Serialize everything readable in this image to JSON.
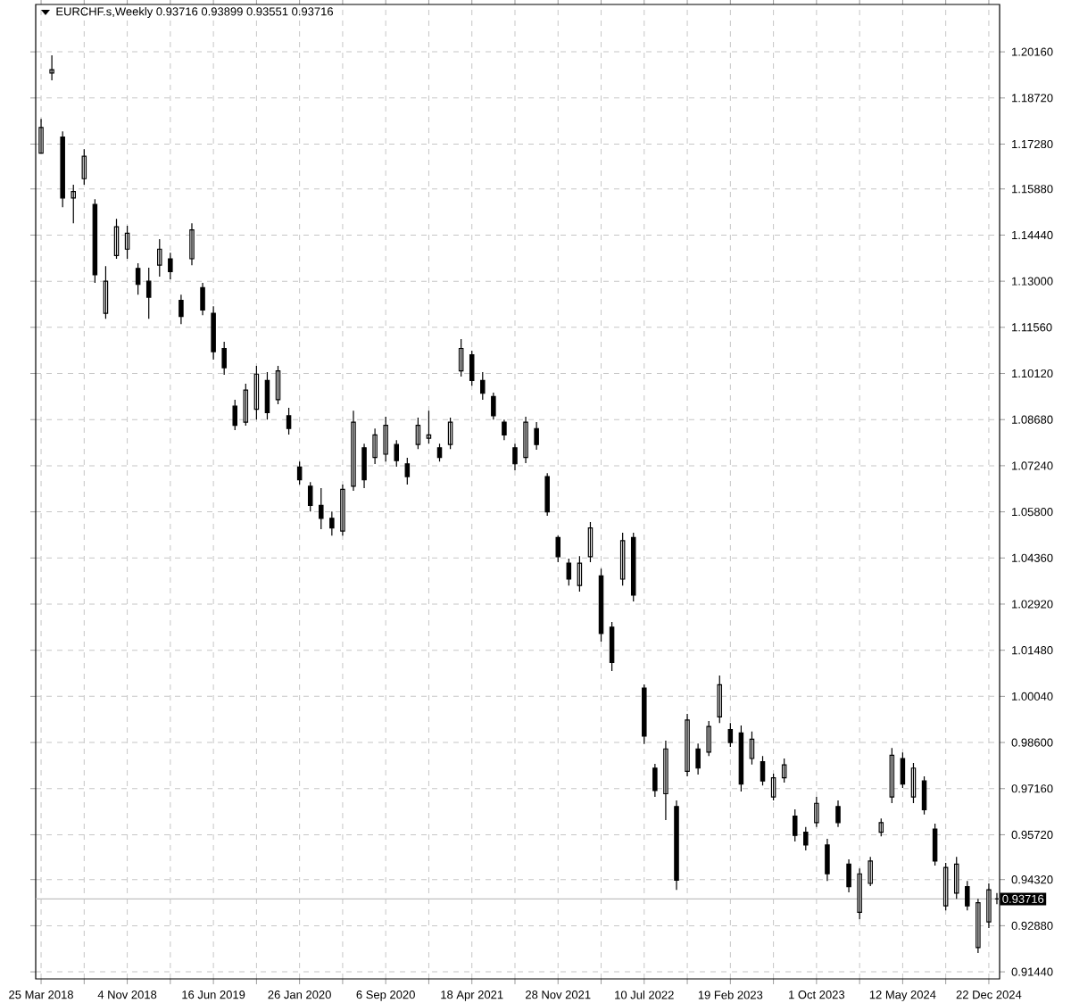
{
  "chart_data": {
    "type": "candlestick",
    "title": "EURCHF.s,Weekly  0.93716 0.93899 0.93551 0.93716",
    "color": "#000000",
    "grid": true,
    "x": [
      "2018-03-25",
      "2018-04-22",
      "2018-05-20",
      "2018-06-17",
      "2018-07-15",
      "2018-08-12",
      "2018-09-09",
      "2018-10-07",
      "2018-11-04",
      "2018-12-02",
      "2018-12-30",
      "2019-01-27",
      "2019-02-24",
      "2019-03-24",
      "2019-04-21",
      "2019-05-19",
      "2019-06-16",
      "2019-07-14",
      "2019-08-11",
      "2019-09-08",
      "2019-10-06",
      "2019-11-03",
      "2019-12-01",
      "2019-12-29",
      "2020-01-26",
      "2020-02-23",
      "2020-03-22",
      "2020-04-19",
      "2020-05-17",
      "2020-06-14",
      "2020-07-12",
      "2020-08-09",
      "2020-09-06",
      "2020-10-04",
      "2020-11-01",
      "2020-11-29",
      "2020-12-27",
      "2021-01-24",
      "2021-02-21",
      "2021-03-21",
      "2021-04-18",
      "2021-05-16",
      "2021-06-13",
      "2021-07-11",
      "2021-08-08",
      "2021-09-05",
      "2021-10-03",
      "2021-10-31",
      "2021-11-28",
      "2021-12-26",
      "2022-01-23",
      "2022-02-20",
      "2022-03-20",
      "2022-04-17",
      "2022-05-15",
      "2022-06-12",
      "2022-07-10",
      "2022-08-07",
      "2022-09-04",
      "2022-10-02",
      "2022-10-30",
      "2022-11-27",
      "2022-12-25",
      "2023-01-22",
      "2023-02-19",
      "2023-03-19",
      "2023-04-16",
      "2023-05-14",
      "2023-06-11",
      "2023-07-09",
      "2023-08-06",
      "2023-09-03",
      "2023-10-01",
      "2023-10-29",
      "2023-11-26",
      "2023-12-24",
      "2024-01-21",
      "2024-02-18",
      "2024-03-17",
      "2024-04-14",
      "2024-05-12",
      "2024-06-09",
      "2024-07-07",
      "2024-08-04",
      "2024-09-01",
      "2024-09-29",
      "2024-10-27",
      "2024-11-24",
      "2024-12-22",
      "2025-01-12"
    ],
    "ohlc": [
      [
        1.17,
        1.1807,
        1.1698,
        1.178
      ],
      [
        1.195,
        1.2005,
        1.1927,
        1.196
      ],
      [
        1.175,
        1.1768,
        1.1531,
        1.156
      ],
      [
        1.156,
        1.1601,
        1.1481,
        1.158
      ],
      [
        1.162,
        1.1712,
        1.1601,
        1.169
      ],
      [
        1.154,
        1.1556,
        1.1295,
        1.132
      ],
      [
        1.12,
        1.1347,
        1.1183,
        1.13
      ],
      [
        1.138,
        1.1495,
        1.137,
        1.147
      ],
      [
        1.14,
        1.1473,
        1.137,
        1.145
      ],
      [
        1.134,
        1.1356,
        1.1258,
        1.129
      ],
      [
        1.13,
        1.1342,
        1.1183,
        1.125
      ],
      [
        1.135,
        1.1431,
        1.1314,
        1.14
      ],
      [
        1.137,
        1.1389,
        1.1306,
        1.133
      ],
      [
        1.124,
        1.1258,
        1.1166,
        1.119
      ],
      [
        1.137,
        1.1481,
        1.135,
        1.146
      ],
      [
        1.128,
        1.1295,
        1.1194,
        1.121
      ],
      [
        1.12,
        1.1222,
        1.1055,
        1.108
      ],
      [
        1.109,
        1.1111,
        1.1008,
        1.103
      ],
      [
        1.091,
        1.093,
        1.0835,
        1.085
      ],
      [
        1.086,
        1.098,
        1.0849,
        1.096
      ],
      [
        1.09,
        1.1036,
        1.0868,
        1.101
      ],
      [
        1.099,
        1.1016,
        1.0868,
        1.089
      ],
      [
        1.093,
        1.1036,
        1.0916,
        1.102
      ],
      [
        1.088,
        1.0905,
        1.0821,
        1.084
      ],
      [
        1.072,
        1.0737,
        1.0665,
        1.068
      ],
      [
        1.066,
        1.0673,
        1.0581,
        1.06
      ],
      [
        1.06,
        1.0654,
        1.0526,
        1.056
      ],
      [
        1.056,
        1.0581,
        1.0506,
        1.053
      ],
      [
        1.052,
        1.0665,
        1.0506,
        1.065
      ],
      [
        1.066,
        1.0896,
        1.0646,
        1.086
      ],
      [
        1.078,
        1.0793,
        1.0654,
        1.068
      ],
      [
        1.075,
        1.084,
        1.0729,
        1.082
      ],
      [
        1.076,
        1.0877,
        1.0737,
        1.085
      ],
      [
        1.079,
        1.0804,
        1.0721,
        1.074
      ],
      [
        1.073,
        1.0749,
        1.0665,
        1.069
      ],
      [
        1.079,
        1.0874,
        1.0776,
        1.085
      ],
      [
        1.081,
        1.0896,
        1.0793,
        1.082
      ],
      [
        1.078,
        1.0793,
        1.0737,
        1.075
      ],
      [
        1.079,
        1.0874,
        1.0776,
        1.086
      ],
      [
        1.102,
        1.1119,
        1.1002,
        1.109
      ],
      [
        1.107,
        1.1083,
        1.0974,
        1.099
      ],
      [
        1.099,
        1.1016,
        1.093,
        1.095
      ],
      [
        1.094,
        1.0952,
        1.0868,
        1.088
      ],
      [
        1.086,
        1.0868,
        1.0804,
        1.082
      ],
      [
        1.078,
        1.0793,
        1.071,
        1.073
      ],
      [
        1.075,
        1.0877,
        1.0732,
        1.086
      ],
      [
        1.084,
        1.086,
        1.0774,
        1.079
      ],
      [
        1.069,
        1.0701,
        1.0568,
        1.058
      ],
      [
        1.05,
        1.0506,
        1.0423,
        1.044
      ],
      [
        1.042,
        1.0434,
        1.035,
        1.037
      ],
      [
        1.035,
        1.0442,
        1.0331,
        1.042
      ],
      [
        1.044,
        1.0548,
        1.0423,
        1.053
      ],
      [
        1.038,
        1.0403,
        1.0175,
        1.02
      ],
      [
        1.022,
        1.0236,
        1.0083,
        1.011
      ],
      [
        1.037,
        1.0515,
        1.035,
        1.049
      ],
      [
        1.05,
        1.0515,
        1.03,
        1.032
      ],
      [
        1.003,
        1.0041,
        0.9855,
        0.988
      ],
      [
        0.978,
        0.9793,
        0.969,
        0.971
      ],
      [
        0.97,
        0.9866,
        0.9618,
        0.984
      ],
      [
        0.966,
        0.9679,
        0.94,
        0.943
      ],
      [
        0.977,
        0.9949,
        0.9754,
        0.993
      ],
      [
        0.984,
        0.9857,
        0.976,
        0.978
      ],
      [
        0.983,
        0.9927,
        0.9818,
        0.991
      ],
      [
        0.994,
        1.0069,
        0.9921,
        1.004
      ],
      [
        0.99,
        0.9921,
        0.9846,
        0.986
      ],
      [
        0.989,
        0.9913,
        0.9707,
        0.973
      ],
      [
        0.981,
        0.9894,
        0.9791,
        0.987
      ],
      [
        0.98,
        0.9818,
        0.9726,
        0.974
      ],
      [
        0.969,
        0.9763,
        0.9679,
        0.975
      ],
      [
        0.975,
        0.981,
        0.9735,
        0.979
      ],
      [
        0.963,
        0.9651,
        0.9551,
        0.957
      ],
      [
        0.958,
        0.9596,
        0.9523,
        0.954
      ],
      [
        0.961,
        0.969,
        0.9596,
        0.967
      ],
      [
        0.954,
        0.9559,
        0.9428,
        0.945
      ],
      [
        0.966,
        0.9679,
        0.9596,
        0.961
      ],
      [
        0.948,
        0.9495,
        0.9392,
        0.941
      ],
      [
        0.933,
        0.9467,
        0.9308,
        0.945
      ],
      [
        0.942,
        0.9503,
        0.9412,
        0.949
      ],
      [
        0.958,
        0.9623,
        0.9567,
        0.961
      ],
      [
        0.969,
        0.9843,
        0.9671,
        0.982
      ],
      [
        0.981,
        0.9829,
        0.9718,
        0.973
      ],
      [
        0.969,
        0.9796,
        0.9671,
        0.978
      ],
      [
        0.974,
        0.9754,
        0.9635,
        0.965
      ],
      [
        0.959,
        0.9607,
        0.9476,
        0.949
      ],
      [
        0.935,
        0.9484,
        0.9336,
        0.947
      ],
      [
        0.939,
        0.9503,
        0.9372,
        0.948
      ],
      [
        0.941,
        0.9428,
        0.9336,
        0.935
      ],
      [
        0.922,
        0.9372,
        0.9203,
        0.936
      ],
      [
        0.93,
        0.942,
        0.9281,
        0.94
      ],
      [
        0.93716,
        0.93899,
        0.93551,
        0.93716
      ]
    ],
    "xlim": [
      "2018-03-11",
      "2025-01-19"
    ],
    "ylim": [
      0.9122,
      1.2164
    ],
    "xticks": [
      {
        "value": "2018-03-25",
        "label": "25 Mar 2018"
      },
      {
        "value": "2018-07-15",
        "label": null
      },
      {
        "value": "2018-11-04",
        "label": "4 Nov 2018"
      },
      {
        "value": "2019-02-24",
        "label": null
      },
      {
        "value": "2019-06-16",
        "label": "16 Jun 2019"
      },
      {
        "value": "2019-10-06",
        "label": null
      },
      {
        "value": "2020-01-26",
        "label": "26 Jan 2020"
      },
      {
        "value": "2020-05-17",
        "label": null
      },
      {
        "value": "2020-09-06",
        "label": "6 Sep 2020"
      },
      {
        "value": "2020-12-27",
        "label": null
      },
      {
        "value": "2021-04-18",
        "label": "18 Apr 2021"
      },
      {
        "value": "2021-08-08",
        "label": null
      },
      {
        "value": "2021-11-28",
        "label": "28 Nov 2021"
      },
      {
        "value": "2022-03-20",
        "label": null
      },
      {
        "value": "2022-07-10",
        "label": "10 Jul 2022"
      },
      {
        "value": "2022-10-30",
        "label": null
      },
      {
        "value": "2023-02-19",
        "label": "19 Feb 2023"
      },
      {
        "value": "2023-06-11",
        "label": null
      },
      {
        "value": "2023-10-01",
        "label": "1 Oct 2023"
      },
      {
        "value": "2024-01-21",
        "label": null
      },
      {
        "value": "2024-05-12",
        "label": "12 May 2024"
      },
      {
        "value": "2024-09-01",
        "label": null
      },
      {
        "value": "2024-12-22",
        "label": "22 Dec 2024"
      }
    ],
    "yticks": [
      {
        "value": 0.9144,
        "label": "0.91440"
      },
      {
        "value": 0.9288,
        "label": "0.92880"
      },
      {
        "value": 0.9432,
        "label": "0.94320"
      },
      {
        "value": 0.9572,
        "label": "0.95720"
      },
      {
        "value": 0.9716,
        "label": "0.97160"
      },
      {
        "value": 0.986,
        "label": "0.98600"
      },
      {
        "value": 1.0004,
        "label": "1.00040"
      },
      {
        "value": 1.0148,
        "label": "1.01480"
      },
      {
        "value": 1.0292,
        "label": "1.02920"
      },
      {
        "value": 1.0436,
        "label": "1.04360"
      },
      {
        "value": 1.058,
        "label": "1.05800"
      },
      {
        "value": 1.0724,
        "label": "1.07240"
      },
      {
        "value": 1.0868,
        "label": "1.08680"
      },
      {
        "value": 1.1012,
        "label": "1.10120"
      },
      {
        "value": 1.1156,
        "label": "1.11560"
      },
      {
        "value": 1.13,
        "label": "1.13000"
      },
      {
        "value": 1.1444,
        "label": "1.14440"
      },
      {
        "value": 1.1588,
        "label": "1.15880"
      },
      {
        "value": 1.1728,
        "label": "1.17280"
      },
      {
        "value": 1.1872,
        "label": "1.18720"
      },
      {
        "value": 1.2016,
        "label": "1.20160"
      }
    ],
    "ref_lines": [
      {
        "axis": "y",
        "value": 0.93716,
        "label": "0.93716",
        "color": "#c0c0c0"
      }
    ]
  }
}
